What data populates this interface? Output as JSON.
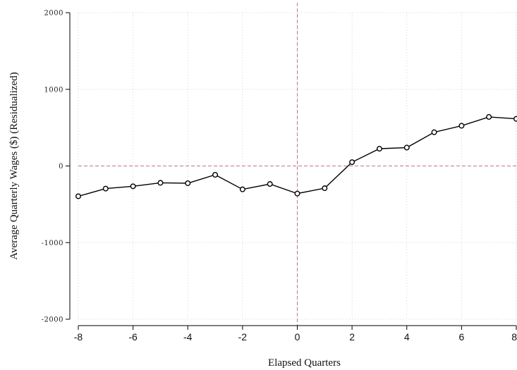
{
  "chart_data": {
    "type": "line",
    "title": "",
    "xlabel": "Elapsed Quarters",
    "ylabel": "Average Quarterly Wages ($) (Residualized)",
    "xlim": [
      -8,
      8
    ],
    "ylim": [
      -2000,
      2000
    ],
    "x_ticks": [
      -8,
      -6,
      -4,
      -2,
      0,
      2,
      4,
      6,
      8
    ],
    "x_tick_labels": [
      "-8",
      "-6",
      "-4",
      "-2",
      "0",
      "2",
      "4",
      "6",
      "8"
    ],
    "y_ticks": [
      -2000,
      -1000,
      0,
      1000,
      2000
    ],
    "y_tick_labels": [
      "-2000",
      "-1000",
      "0",
      "1000",
      "2000"
    ],
    "grid": true,
    "reference_lines": [
      {
        "orientation": "vertical",
        "value": 0,
        "style": "dashed",
        "color": "#c0738f"
      },
      {
        "orientation": "horizontal",
        "value": 0,
        "style": "dashed",
        "color": "#c0738f"
      }
    ],
    "series": [
      {
        "x": [
          -8,
          -7,
          -6,
          -5,
          -4,
          -3,
          -2,
          -1,
          0,
          1,
          2,
          3,
          4,
          5,
          6,
          7,
          8
        ],
        "y": [
          -395,
          -295,
          -265,
          -220,
          -225,
          -115,
          -305,
          -235,
          -360,
          -290,
          50,
          225,
          240,
          440,
          525,
          640,
          615
        ],
        "color": "#000000",
        "marker": "hollow-circle"
      }
    ]
  }
}
